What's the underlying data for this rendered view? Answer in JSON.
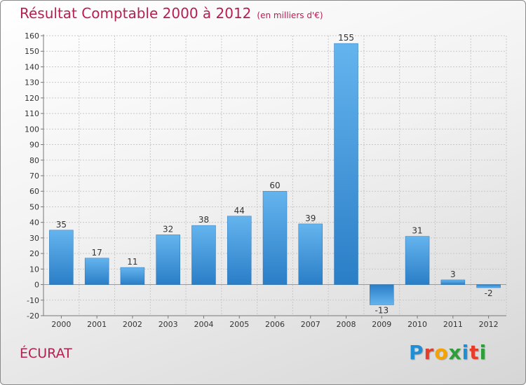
{
  "title": "Résultat Comptable 2000 à 2012",
  "subtitle": "(en milliers d'€)",
  "commune": "ÉCURAT",
  "brand": {
    "letters": [
      "P",
      "r",
      "o",
      "x",
      "i",
      "t",
      "i"
    ],
    "colors": [
      "#1e8fd6",
      "#e63c2a",
      "#f4a300",
      "#2e9e3a",
      "#1e8fd6",
      "#e63c2a",
      "#2e9e3a"
    ]
  },
  "chart_data": {
    "type": "bar",
    "title": "Résultat Comptable 2000 à 2012",
    "subtitle": "(en milliers d'€)",
    "xlabel": "",
    "ylabel": "",
    "categories": [
      "2000",
      "2001",
      "2002",
      "2003",
      "2004",
      "2005",
      "2006",
      "2007",
      "2008",
      "2009",
      "2010",
      "2011",
      "2012"
    ],
    "values": [
      35,
      17,
      11,
      32,
      38,
      44,
      60,
      39,
      155,
      -13,
      31,
      3,
      -2
    ],
    "data_labels": [
      "35",
      "17",
      "11",
      "32",
      "38",
      "44",
      "60",
      "39",
      "155",
      "-13",
      "31",
      "3",
      "-2"
    ],
    "ylim": [
      -20,
      160
    ],
    "yticks": [
      -20,
      -10,
      0,
      10,
      20,
      30,
      40,
      50,
      60,
      70,
      80,
      90,
      100,
      110,
      120,
      130,
      140,
      150,
      160
    ],
    "grid": true,
    "bar_color": "#3d8fd6"
  }
}
